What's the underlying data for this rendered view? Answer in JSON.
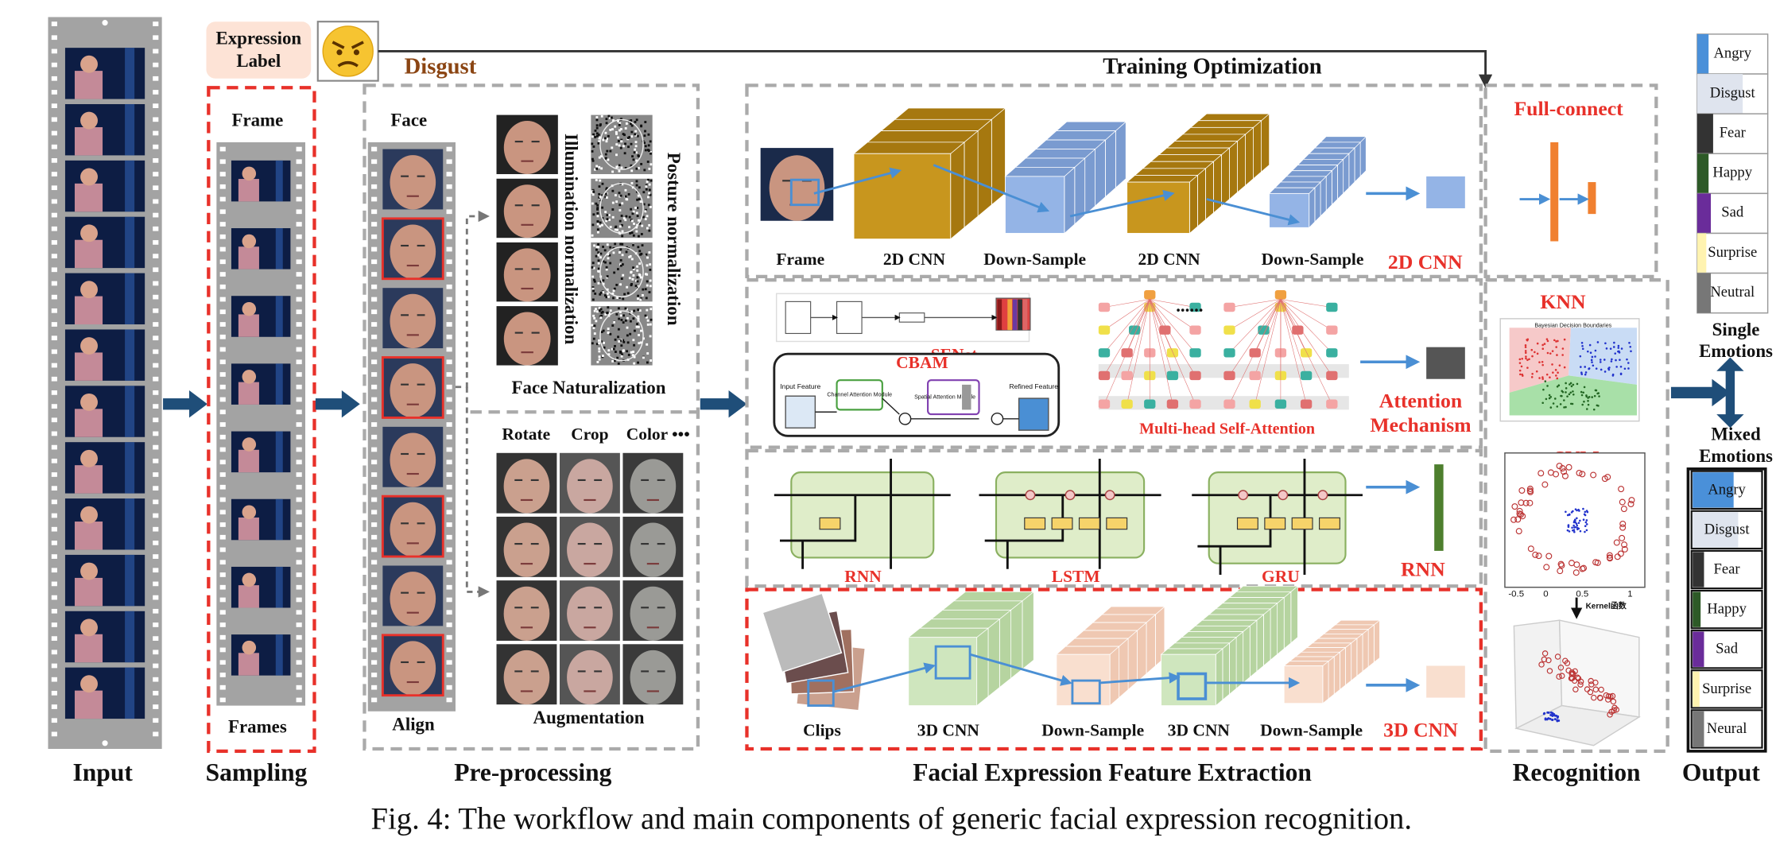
{
  "expression_label": [
    "Expression",
    "Label"
  ],
  "label_value": "Disgust",
  "training_optimization": "Training Optimization",
  "sampling": {
    "top": "Frame",
    "bottom": "Frames"
  },
  "preprocessing": {
    "face": "Face",
    "align": "Align",
    "illumination": "Illumination normalization",
    "posture": "Posture normalization",
    "naturalization": "Face Naturalization",
    "augment_ops": [
      "Rotate",
      "Crop",
      "Color •••"
    ],
    "augmentation": "Augmentation"
  },
  "feature_extraction": {
    "cnn2d": {
      "labels": [
        "Frame",
        "2D CNN",
        "Down-Sample",
        "2D CNN",
        "Down-Sample"
      ],
      "name": "2D CNN"
    },
    "attention": {
      "senet": "SENet",
      "cbam": "CBAM",
      "cbam_parts": [
        "Input Feature",
        "Channel Attention Module",
        "Spatial Attention Module",
        "Refined Feature"
      ],
      "ellipsis": "......",
      "mhsa": "Multi-head Self-Attention",
      "name": [
        "Attention",
        "Mechanism"
      ]
    },
    "rnn": {
      "labels": [
        "RNN",
        "LSTM",
        "GRU"
      ],
      "name": "RNN"
    },
    "cnn3d": {
      "labels": [
        "Clips",
        "3D CNN",
        "Down-Sample",
        "3D CNN",
        "Down-Sample"
      ],
      "name": "3D CNN"
    }
  },
  "recognition": {
    "full_connect": "Full-connect",
    "knn": "KNN",
    "knn_plot_title": "Bayesian Decision Boundaries",
    "svm": "SVM",
    "svm_ticks": [
      "-0.5",
      "0",
      "0.5",
      "1"
    ],
    "kernel": "Kernel函数"
  },
  "output": {
    "single": [
      "Angry",
      "Disgust",
      "Fear",
      "Happy",
      "Sad",
      "Surprise",
      "Neutral"
    ],
    "single_title": [
      "Single",
      "Emotions"
    ],
    "mixed_title": [
      "Mixed",
      "Emotions"
    ],
    "mixed": [
      "Angry",
      "Disgust",
      "Fear",
      "Happy",
      "Sad",
      "Surprise",
      "Neural"
    ]
  },
  "stages": [
    "Input",
    "Sampling",
    "Pre-processing",
    "Facial Expression Feature Extraction",
    "Recognition",
    "Output"
  ],
  "caption": "Fig. 4: The workflow and main components of generic facial expression recognition."
}
